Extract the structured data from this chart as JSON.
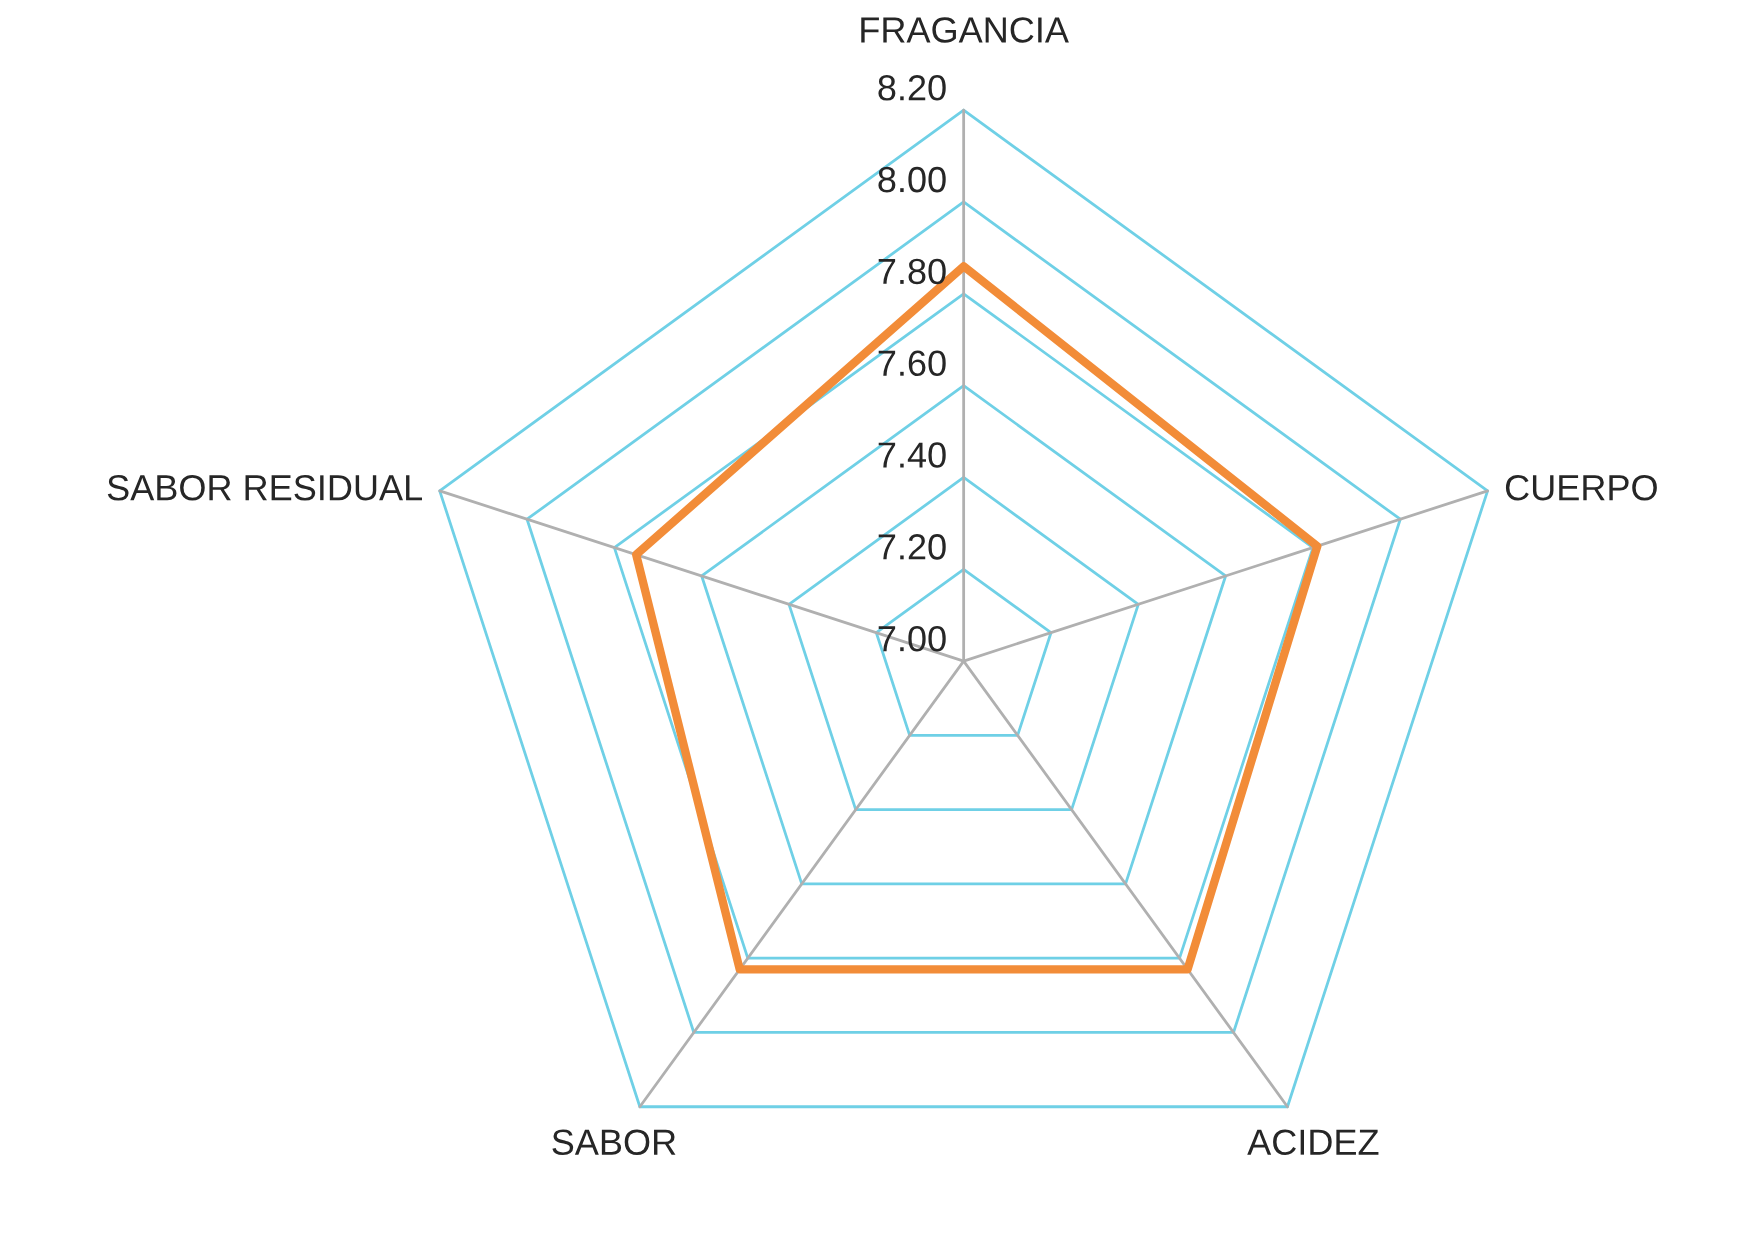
{
  "chart_data": {
    "type": "radar",
    "categories": [
      "FRAGANCIA",
      "CUERPO",
      "ACIDEZ",
      "SABOR",
      "SABOR RESIDUAL"
    ],
    "series": [
      {
        "color": "#f28c38",
        "values": [
          7.86,
          7.81,
          7.83,
          7.83,
          7.75
        ]
      }
    ],
    "ylim": [
      7.0,
      8.2
    ],
    "yticks": [
      {
        "value": 7.0,
        "label": "7.00"
      },
      {
        "value": 7.2,
        "label": "7.20"
      },
      {
        "value": 7.4,
        "label": "7.40"
      },
      {
        "value": 7.6,
        "label": "7.60"
      },
      {
        "value": 7.8,
        "label": "7.80"
      },
      {
        "value": 8.0,
        "label": "8.00"
      },
      {
        "value": 8.2,
        "label": "8.20"
      }
    ],
    "grid": true
  }
}
